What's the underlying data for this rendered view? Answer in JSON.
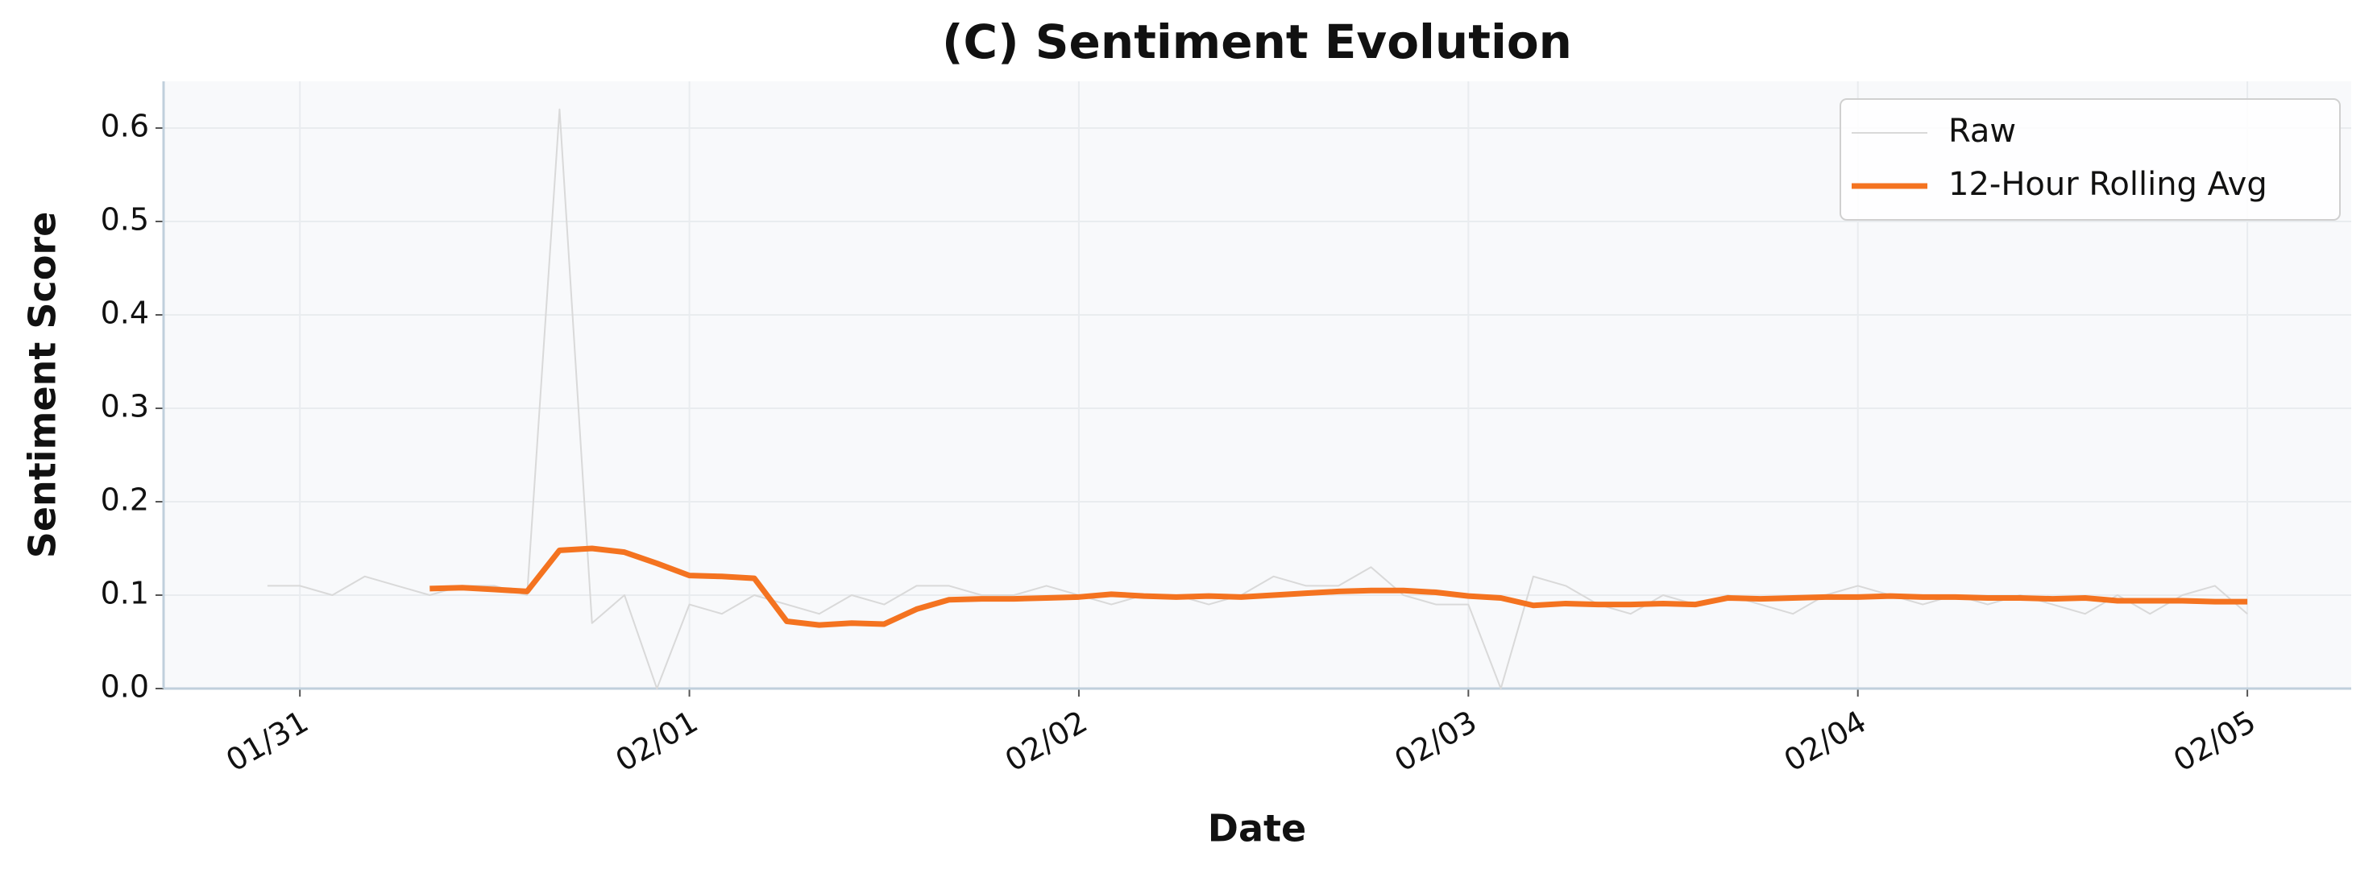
{
  "chart_data": {
    "type": "line",
    "title": "(C) Sentiment Evolution",
    "x_label": "Date",
    "y_label": "Sentiment Score",
    "xlim": [
      -8.4,
      126.4
    ],
    "xticks": [
      {
        "value": 0,
        "label": "01/31"
      },
      {
        "value": 24,
        "label": "02/01"
      },
      {
        "value": 48,
        "label": "02/02"
      },
      {
        "value": 72,
        "label": "02/03"
      },
      {
        "value": 96,
        "label": "02/04"
      },
      {
        "value": 120,
        "label": "02/05"
      }
    ],
    "ylim": [
      0,
      0.65
    ],
    "yticks": [
      {
        "value": 0,
        "label": "0.0"
      },
      0.1,
      0.2,
      0.3,
      0.4,
      0.5,
      0.6
    ],
    "grid": true,
    "legend": "upper right",
    "series": [
      {
        "name": "Raw",
        "color": "#d9d9d9",
        "width": 2,
        "x": [
          -2,
          0,
          2,
          4,
          6,
          8,
          10,
          12,
          14,
          16,
          18,
          20,
          22,
          24,
          26,
          28,
          30,
          32,
          34,
          36,
          38,
          40,
          42,
          44,
          46,
          48,
          50,
          52,
          54,
          56,
          58,
          60,
          62,
          64,
          66,
          68,
          70,
          72,
          74,
          76,
          78,
          80,
          82,
          84,
          86,
          88,
          90,
          92,
          94,
          96,
          98,
          100,
          102,
          104,
          106,
          108,
          110,
          112,
          114,
          116,
          118,
          120
        ],
        "values": [
          0.11,
          0.11,
          0.1,
          0.12,
          0.11,
          0.1,
          0.11,
          0.11,
          0.1,
          0.62,
          0.07,
          0.1,
          0.0,
          0.09,
          0.08,
          0.1,
          0.09,
          0.08,
          0.1,
          0.09,
          0.11,
          0.11,
          0.1,
          0.1,
          0.11,
          0.1,
          0.09,
          0.1,
          0.1,
          0.09,
          0.1,
          0.12,
          0.11,
          0.11,
          0.13,
          0.1,
          0.09,
          0.09,
          0.0,
          0.12,
          0.11,
          0.09,
          0.08,
          0.1,
          0.09,
          0.1,
          0.09,
          0.08,
          0.1,
          0.11,
          0.1,
          0.09,
          0.1,
          0.09,
          0.1,
          0.09,
          0.08,
          0.1,
          0.08,
          0.1,
          0.11,
          0.08
        ]
      },
      {
        "name": "12-Hour Rolling Avg",
        "color": "#f47320",
        "width": 7,
        "x": [
          8,
          10,
          12,
          14,
          16,
          18,
          20,
          22,
          24,
          26,
          28,
          30,
          32,
          34,
          36,
          38,
          40,
          42,
          44,
          46,
          48,
          50,
          52,
          54,
          56,
          58,
          60,
          62,
          64,
          66,
          68,
          70,
          72,
          74,
          76,
          78,
          80,
          82,
          84,
          86,
          88,
          90,
          92,
          94,
          96,
          98,
          100,
          102,
          104,
          106,
          108,
          110,
          112,
          114,
          116,
          118,
          120
        ],
        "values": [
          0.107,
          0.108,
          0.106,
          0.104,
          0.148,
          0.15,
          0.146,
          0.134,
          0.121,
          0.12,
          0.118,
          0.072,
          0.068,
          0.07,
          0.069,
          0.085,
          0.095,
          0.096,
          0.096,
          0.097,
          0.098,
          0.101,
          0.099,
          0.098,
          0.099,
          0.098,
          0.1,
          0.102,
          0.104,
          0.105,
          0.105,
          0.103,
          0.099,
          0.097,
          0.089,
          0.091,
          0.09,
          0.09,
          0.091,
          0.09,
          0.097,
          0.096,
          0.097,
          0.098,
          0.098,
          0.099,
          0.098,
          0.098,
          0.097,
          0.097,
          0.096,
          0.097,
          0.094,
          0.094,
          0.094,
          0.093,
          0.093
        ]
      }
    ]
  }
}
